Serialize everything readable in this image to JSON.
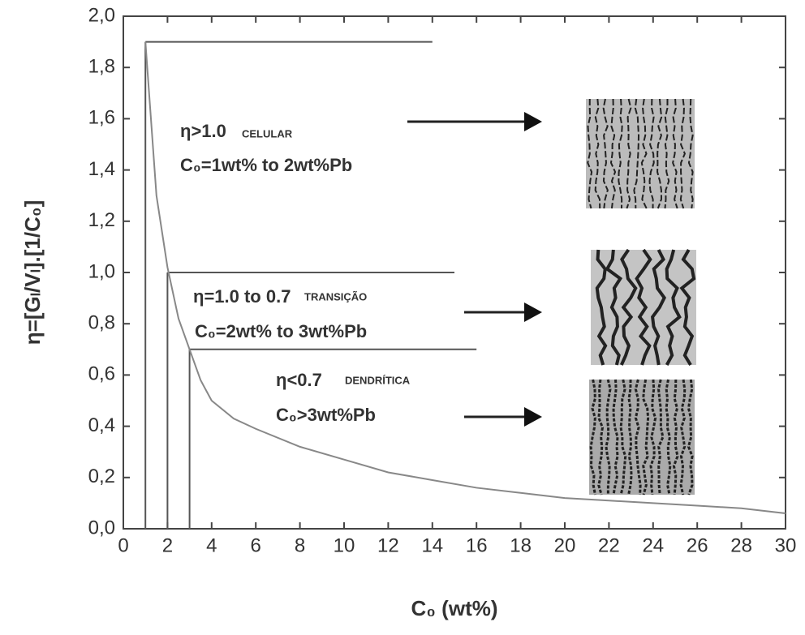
{
  "chart_data": {
    "type": "line",
    "x_label": "C₀ (wt%)",
    "y_label": "η=[Gₗ/Vₗ].[1/C₀]",
    "x": [
      1,
      1.5,
      2,
      2.5,
      3,
      3.5,
      4,
      5,
      6,
      8,
      10,
      12,
      14,
      16,
      18,
      20,
      22,
      24,
      26,
      28,
      30
    ],
    "series": [
      {
        "color": "#888888",
        "values": [
          1.9,
          1.3,
          1.02,
          0.82,
          0.7,
          0.58,
          0.5,
          0.43,
          0.39,
          0.32,
          0.27,
          0.22,
          0.19,
          0.16,
          0.14,
          0.12,
          0.11,
          0.1,
          0.09,
          0.08,
          0.06
        ]
      }
    ],
    "reference_lines": [
      {
        "y": 1.9,
        "x": [
          1,
          14
        ]
      },
      {
        "y": 1.0,
        "x": [
          2,
          15
        ]
      },
      {
        "y": 0.7,
        "x": [
          3,
          16
        ]
      }
    ],
    "annotations": [
      "η>1.0",
      "CELULAR",
      "C₀=1wt% to 2wt%Pb",
      "η=1.0 to 0.7",
      "TRANSIÇÃO",
      "C₀=2wt% to 3wt%Pb",
      "η<0.7",
      "DENDRÍTICA",
      "C₀>3wt%Pb"
    ],
    "xlim": [
      0,
      30
    ],
    "ylim": [
      0,
      2.0
    ],
    "xticks": [
      0,
      2,
      4,
      6,
      8,
      10,
      12,
      14,
      16,
      18,
      20,
      22,
      24,
      26,
      28,
      30
    ],
    "yticks": [
      {
        "value": 0,
        "label": "0,0"
      },
      {
        "value": 0.2,
        "label": "0,2"
      },
      {
        "value": 0.4,
        "label": "0,4"
      },
      {
        "value": 0.6,
        "label": "0,6"
      },
      {
        "value": 0.8,
        "label": "0,8"
      },
      {
        "value": 1.0,
        "label": "1,0"
      },
      {
        "value": 1.2,
        "label": "1,2"
      },
      {
        "value": 1.4,
        "label": "1,4"
      },
      {
        "value": 1.6,
        "label": "1,6"
      },
      {
        "value": 1.8,
        "label": "1,8"
      },
      {
        "value": 2.0,
        "label": "2,0"
      }
    ]
  }
}
